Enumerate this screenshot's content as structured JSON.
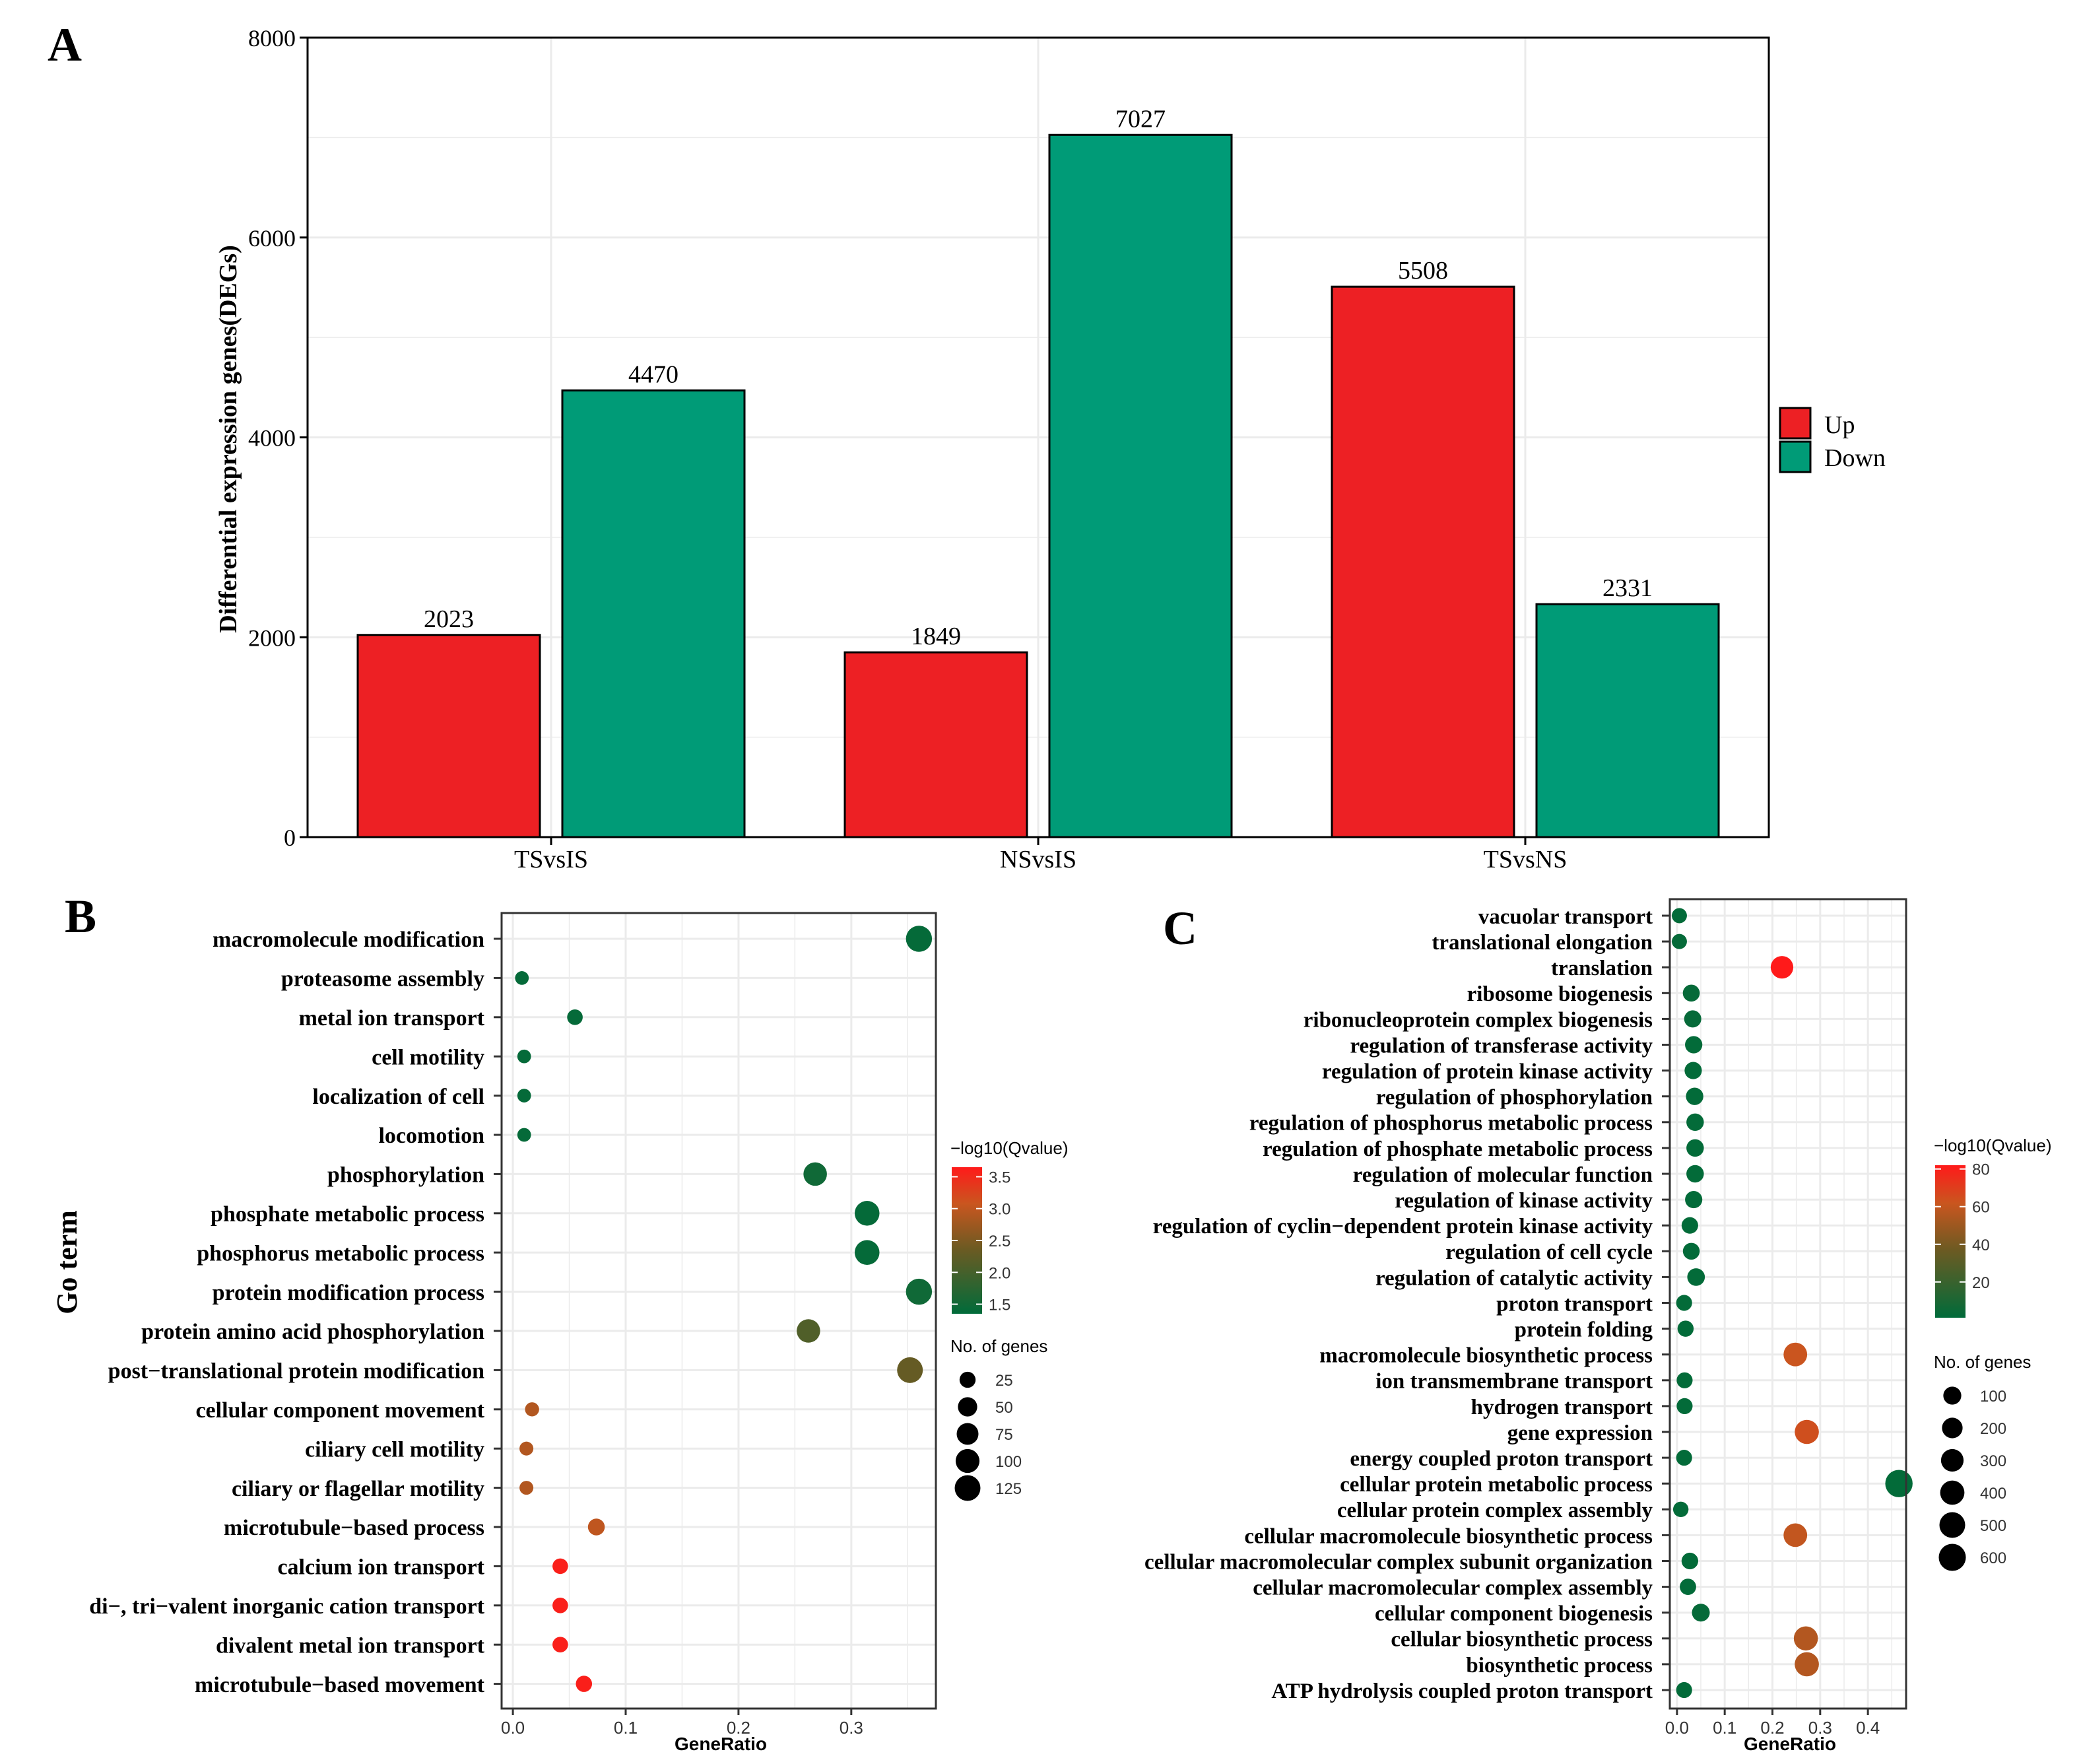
{
  "colors": {
    "up": "#ed2024",
    "down": "#009b77",
    "grid": "#ebebeb",
    "axis": "#000000",
    "scale_low": "#006b3a",
    "scale_high": "#ff1a1a"
  },
  "chart_data": [
    {
      "id": "A",
      "panel_label": "A",
      "type": "bar",
      "categories": [
        "TSvsIS",
        "NSvsIS",
        "TSvsNS"
      ],
      "series": [
        {
          "name": "Up",
          "values": [
            2023,
            1849,
            5508
          ]
        },
        {
          "name": "Down",
          "values": [
            4470,
            7027,
            2331
          ]
        }
      ],
      "ylabel": "Differential expression genes(DEGs)",
      "xlabel": "",
      "ylim": [
        0,
        8000
      ],
      "yticks": [
        0,
        2000,
        4000,
        6000,
        8000
      ],
      "legend": {
        "position": "right",
        "entries": [
          "Up",
          "Down"
        ]
      },
      "grid": true
    },
    {
      "id": "B",
      "panel_label": "B",
      "type": "scatter",
      "ylabel": "Go term",
      "xlabel": "GeneRatio",
      "xlim": [
        -0.01,
        0.375
      ],
      "xticks": [
        0.0,
        0.1,
        0.2,
        0.3
      ],
      "xtick_labels": [
        "0.0",
        "0.1",
        "0.2",
        "0.3"
      ],
      "color_legend_title": "−log10(Qvalue)",
      "color_range": [
        1.35,
        3.65
      ],
      "color_ticks": [
        1.5,
        2.0,
        2.5,
        3.0,
        3.5
      ],
      "color_tick_labels": [
        "1.5",
        "2.0",
        "2.5",
        "3.0",
        "3.5"
      ],
      "size_legend_title": "No. of genes",
      "size_legend_values": [
        25,
        50,
        75,
        100,
        125
      ],
      "size_range": [
        10,
        135
      ],
      "terms": [
        {
          "term": "macromolecule modification",
          "x": 0.36,
          "count": 130,
          "q": 1.4
        },
        {
          "term": "proteasome assembly",
          "x": 0.008,
          "count": 12,
          "q": 1.4
        },
        {
          "term": "metal ion transport",
          "x": 0.055,
          "count": 22,
          "q": 1.4
        },
        {
          "term": "cell motility",
          "x": 0.01,
          "count": 12,
          "q": 1.4
        },
        {
          "term": "localization of cell",
          "x": 0.01,
          "count": 12,
          "q": 1.4
        },
        {
          "term": "locomotion",
          "x": 0.01,
          "count": 12,
          "q": 1.4
        },
        {
          "term": "phosphorylation",
          "x": 0.268,
          "count": 95,
          "q": 1.5
        },
        {
          "term": "phosphate metabolic process",
          "x": 0.314,
          "count": 112,
          "q": 1.4
        },
        {
          "term": "phosphorus metabolic process",
          "x": 0.314,
          "count": 112,
          "q": 1.4
        },
        {
          "term": "protein modification process",
          "x": 0.36,
          "count": 130,
          "q": 1.5
        },
        {
          "term": "protein amino acid phosphorylation",
          "x": 0.262,
          "count": 95,
          "q": 2.1
        },
        {
          "term": "post−translational protein modification",
          "x": 0.352,
          "count": 125,
          "q": 2.3
        },
        {
          "term": "cellular component movement",
          "x": 0.017,
          "count": 14,
          "q": 2.9
        },
        {
          "term": "ciliary cell motility",
          "x": 0.012,
          "count": 13,
          "q": 2.9
        },
        {
          "term": "ciliary or flagellar motility",
          "x": 0.012,
          "count": 13,
          "q": 2.9
        },
        {
          "term": "microtubule−based process",
          "x": 0.074,
          "count": 30,
          "q": 3.0
        },
        {
          "term": "calcium ion transport",
          "x": 0.042,
          "count": 22,
          "q": 3.6
        },
        {
          "term": "di−, tri−valent inorganic cation transport",
          "x": 0.042,
          "count": 22,
          "q": 3.6
        },
        {
          "term": "divalent metal ion transport",
          "x": 0.042,
          "count": 22,
          "q": 3.6
        },
        {
          "term": "microtubule−based movement",
          "x": 0.063,
          "count": 26,
          "q": 3.6
        }
      ]
    },
    {
      "id": "C",
      "panel_label": "C",
      "type": "scatter",
      "ylabel": "",
      "xlabel": "GeneRatio",
      "xlim": [
        -0.015,
        0.48
      ],
      "xticks": [
        0.0,
        0.1,
        0.2,
        0.3,
        0.4
      ],
      "xtick_labels": [
        "0.0",
        "0.1",
        "0.2",
        "0.3",
        "0.4"
      ],
      "color_legend_title": "−log10(Qvalue)",
      "color_range": [
        1,
        82
      ],
      "color_ticks": [
        20,
        40,
        60,
        80
      ],
      "color_tick_labels": [
        "20",
        "40",
        "60",
        "80"
      ],
      "size_legend_title": "No. of genes",
      "size_legend_values": [
        100,
        200,
        300,
        400,
        500,
        600
      ],
      "size_range": [
        20,
        650
      ],
      "terms": [
        {
          "term": "vacuolar transport",
          "x": 0.005,
          "count": 30,
          "q": 2
        },
        {
          "term": "translational elongation",
          "x": 0.005,
          "count": 30,
          "q": 3
        },
        {
          "term": "translation",
          "x": 0.22,
          "count": 300,
          "q": 82
        },
        {
          "term": "ribosome biogenesis",
          "x": 0.03,
          "count": 70,
          "q": 3
        },
        {
          "term": "ribonucleoprotein complex biogenesis",
          "x": 0.033,
          "count": 75,
          "q": 3
        },
        {
          "term": "regulation of transferase activity",
          "x": 0.035,
          "count": 80,
          "q": 2
        },
        {
          "term": "regulation of protein kinase activity",
          "x": 0.034,
          "count": 78,
          "q": 2
        },
        {
          "term": "regulation of phosphorylation",
          "x": 0.037,
          "count": 82,
          "q": 2
        },
        {
          "term": "regulation of phosphorus metabolic process",
          "x": 0.038,
          "count": 84,
          "q": 2
        },
        {
          "term": "regulation of phosphate metabolic process",
          "x": 0.038,
          "count": 84,
          "q": 2
        },
        {
          "term": "regulation of molecular function",
          "x": 0.038,
          "count": 84,
          "q": 2
        },
        {
          "term": "regulation of kinase activity",
          "x": 0.035,
          "count": 78,
          "q": 2
        },
        {
          "term": "regulation of cyclin−dependent protein kinase activity",
          "x": 0.027,
          "count": 60,
          "q": 2
        },
        {
          "term": "regulation of cell cycle",
          "x": 0.03,
          "count": 66,
          "q": 2
        },
        {
          "term": "regulation of catalytic activity",
          "x": 0.04,
          "count": 88,
          "q": 2
        },
        {
          "term": "proton transport",
          "x": 0.015,
          "count": 45,
          "q": 2
        },
        {
          "term": "protein folding",
          "x": 0.018,
          "count": 50,
          "q": 2
        },
        {
          "term": "macromolecule biosynthetic process",
          "x": 0.248,
          "count": 360,
          "q": 62
        },
        {
          "term": "ion transmembrane transport",
          "x": 0.016,
          "count": 46,
          "q": 2
        },
        {
          "term": "hydrogen transport",
          "x": 0.016,
          "count": 46,
          "q": 2
        },
        {
          "term": "gene expression",
          "x": 0.272,
          "count": 390,
          "q": 64
        },
        {
          "term": "energy coupled proton transport",
          "x": 0.015,
          "count": 45,
          "q": 2
        },
        {
          "term": "cellular protein metabolic process",
          "x": 0.465,
          "count": 620,
          "q": 2
        },
        {
          "term": "cellular protein complex assembly",
          "x": 0.008,
          "count": 35,
          "q": 2
        },
        {
          "term": "cellular macromolecule biosynthetic process",
          "x": 0.248,
          "count": 360,
          "q": 60
        },
        {
          "term": "cellular macromolecular complex subunit organization",
          "x": 0.027,
          "count": 62,
          "q": 2
        },
        {
          "term": "cellular macromolecular complex assembly",
          "x": 0.023,
          "count": 55,
          "q": 2
        },
        {
          "term": "cellular component biogenesis",
          "x": 0.05,
          "count": 95,
          "q": 3
        },
        {
          "term": "cellular biosynthetic process",
          "x": 0.27,
          "count": 390,
          "q": 56
        },
        {
          "term": "biosynthetic process",
          "x": 0.272,
          "count": 395,
          "q": 56
        },
        {
          "term": "ATP hydrolysis coupled proton transport",
          "x": 0.015,
          "count": 45,
          "q": 2
        }
      ]
    }
  ]
}
